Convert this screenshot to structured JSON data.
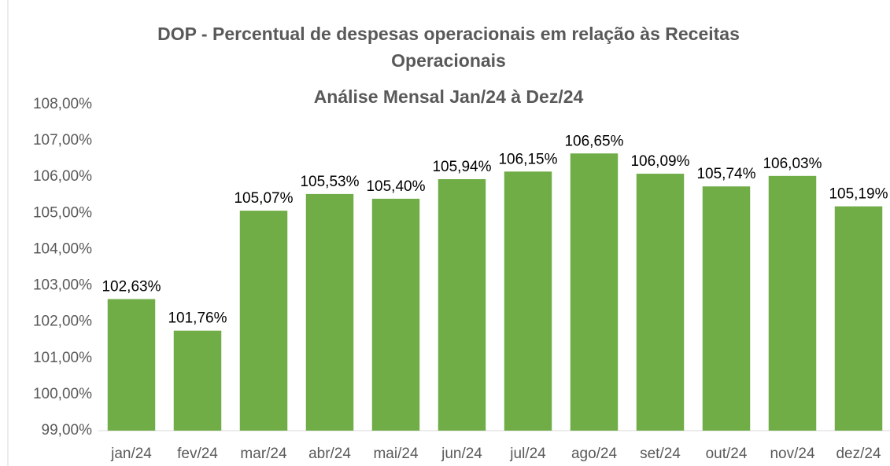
{
  "chart_data": {
    "type": "bar",
    "title": "DOP - Percentual de despesas operacionais em relação às Receitas Operacionais",
    "subtitle": "Análise Mensal Jan/24 à Dez/24",
    "categories": [
      "jan/24",
      "fev/24",
      "mar/24",
      "abr/24",
      "mai/24",
      "jun/24",
      "jul/24",
      "ago/24",
      "set/24",
      "out/24",
      "nov/24",
      "dez/24"
    ],
    "values": [
      102.63,
      101.76,
      105.07,
      105.53,
      105.4,
      105.94,
      106.15,
      106.65,
      106.09,
      105.74,
      106.03,
      105.19
    ],
    "value_labels": [
      "102,63%",
      "101,76%",
      "105,07%",
      "105,53%",
      "105,40%",
      "105,94%",
      "106,15%",
      "106,65%",
      "106,09%",
      "105,74%",
      "106,03%",
      "105,19%"
    ],
    "color": "#70ad47",
    "ylim": [
      99,
      108
    ],
    "yticks": [
      {
        "value": 99,
        "label": "99,00%"
      },
      {
        "value": 100,
        "label": "100,00%"
      },
      {
        "value": 101,
        "label": "101,00%"
      },
      {
        "value": 102,
        "label": "102,00%"
      },
      {
        "value": 103,
        "label": "103,00%"
      },
      {
        "value": 104,
        "label": "104,00%"
      },
      {
        "value": 105,
        "label": "105,00%"
      },
      {
        "value": 106,
        "label": "106,00%"
      },
      {
        "value": 107,
        "label": "107,00%"
      },
      {
        "value": 108,
        "label": "108,00%"
      }
    ],
    "grid": false
  }
}
